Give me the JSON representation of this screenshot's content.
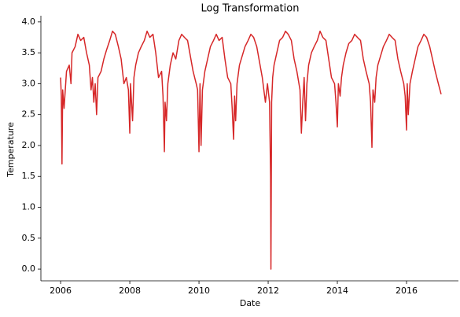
{
  "chart_data": {
    "type": "line",
    "title": "Log Transformation",
    "x_label": "Date",
    "y_label": "Temperature",
    "color": "#d62728",
    "xlim": [
      2005.43,
      2017.5
    ],
    "xticks": [
      2006,
      2008,
      2010,
      2012,
      2014,
      2016
    ],
    "ylim": [
      -0.19,
      4.1
    ],
    "yticks": [
      {
        "value": 0,
        "label": "0.0"
      },
      0.5,
      {
        "value": 1,
        "label": "1.0"
      },
      1.5,
      {
        "value": 2,
        "label": "2.0"
      },
      2.5,
      {
        "value": 3,
        "label": "3.0"
      },
      3.5,
      {
        "value": 4,
        "label": "4.0"
      }
    ],
    "x": [
      2006.0,
      2006.02,
      2006.04,
      2006.06,
      2006.1,
      2006.17,
      2006.25,
      2006.3,
      2006.33,
      2006.42,
      2006.5,
      2006.58,
      2006.67,
      2006.75,
      2006.83,
      2006.88,
      2006.92,
      2006.96,
      2007.0,
      2007.04,
      2007.08,
      2007.17,
      2007.25,
      2007.33,
      2007.42,
      2007.5,
      2007.58,
      2007.67,
      2007.75,
      2007.83,
      2007.9,
      2007.96,
      2008.0,
      2008.02,
      2008.08,
      2008.12,
      2008.17,
      2008.25,
      2008.33,
      2008.42,
      2008.5,
      2008.58,
      2008.67,
      2008.75,
      2008.83,
      2008.92,
      2008.96,
      2009.0,
      2009.02,
      2009.06,
      2009.1,
      2009.17,
      2009.25,
      2009.33,
      2009.42,
      2009.5,
      2009.58,
      2009.67,
      2009.75,
      2009.83,
      2009.92,
      2009.96,
      2010.0,
      2010.03,
      2010.06,
      2010.1,
      2010.17,
      2010.25,
      2010.33,
      2010.42,
      2010.5,
      2010.58,
      2010.67,
      2010.75,
      2010.83,
      2010.92,
      2010.96,
      2011.0,
      2011.03,
      2011.06,
      2011.1,
      2011.17,
      2011.25,
      2011.33,
      2011.42,
      2011.5,
      2011.58,
      2011.67,
      2011.75,
      2011.83,
      2011.92,
      2011.98,
      2012.04,
      2012.07,
      2012.08,
      2012.1,
      2012.13,
      2012.17,
      2012.25,
      2012.33,
      2012.42,
      2012.5,
      2012.58,
      2012.67,
      2012.75,
      2012.83,
      2012.92,
      2012.96,
      2013.0,
      2013.04,
      2013.08,
      2013.12,
      2013.17,
      2013.25,
      2013.33,
      2013.42,
      2013.5,
      2013.58,
      2013.67,
      2013.75,
      2013.83,
      2013.92,
      2013.96,
      2014.0,
      2014.03,
      2014.08,
      2014.12,
      2014.17,
      2014.25,
      2014.33,
      2014.42,
      2014.5,
      2014.58,
      2014.67,
      2014.75,
      2014.83,
      2014.92,
      2014.96,
      2015.0,
      2015.03,
      2015.08,
      2015.12,
      2015.17,
      2015.25,
      2015.33,
      2015.42,
      2015.5,
      2015.58,
      2015.67,
      2015.75,
      2015.83,
      2015.92,
      2015.96,
      2016.0,
      2016.02,
      2016.05,
      2016.1,
      2016.17,
      2016.25,
      2016.33,
      2016.42,
      2016.5,
      2016.58,
      2016.67,
      2016.75,
      2016.83,
      2016.92,
      2017.0
    ],
    "values": [
      3.1,
      2.8,
      1.7,
      2.9,
      2.6,
      3.2,
      3.3,
      3.0,
      3.5,
      3.6,
      3.8,
      3.7,
      3.75,
      3.5,
      3.3,
      2.9,
      3.1,
      2.7,
      3.0,
      2.5,
      3.1,
      3.2,
      3.4,
      3.55,
      3.7,
      3.85,
      3.8,
      3.6,
      3.4,
      3.0,
      3.1,
      2.9,
      2.2,
      3.0,
      2.4,
      3.1,
      3.3,
      3.5,
      3.6,
      3.7,
      3.85,
      3.75,
      3.8,
      3.5,
      3.1,
      3.2,
      2.8,
      1.9,
      2.7,
      2.4,
      3.0,
      3.3,
      3.5,
      3.4,
      3.7,
      3.8,
      3.75,
      3.7,
      3.45,
      3.2,
      3.0,
      2.9,
      1.9,
      3.0,
      2.0,
      2.9,
      3.2,
      3.4,
      3.6,
      3.7,
      3.8,
      3.7,
      3.75,
      3.4,
      3.1,
      3.0,
      2.6,
      2.1,
      2.8,
      2.4,
      3.0,
      3.3,
      3.45,
      3.6,
      3.7,
      3.8,
      3.75,
      3.6,
      3.35,
      3.1,
      2.7,
      3.0,
      2.7,
      1.5,
      0.0,
      2.7,
      3.1,
      3.3,
      3.5,
      3.7,
      3.75,
      3.85,
      3.8,
      3.7,
      3.4,
      3.2,
      2.9,
      2.2,
      2.7,
      3.1,
      2.4,
      3.0,
      3.3,
      3.5,
      3.6,
      3.7,
      3.85,
      3.75,
      3.7,
      3.4,
      3.1,
      3.0,
      2.7,
      2.3,
      3.0,
      2.8,
      3.1,
      3.3,
      3.5,
      3.65,
      3.7,
      3.8,
      3.75,
      3.7,
      3.4,
      3.2,
      3.0,
      2.7,
      1.97,
      2.9,
      2.7,
      3.1,
      3.3,
      3.45,
      3.6,
      3.7,
      3.8,
      3.75,
      3.7,
      3.4,
      3.2,
      3.0,
      2.8,
      2.25,
      3.0,
      2.5,
      3.0,
      3.2,
      3.4,
      3.6,
      3.7,
      3.8,
      3.75,
      3.6,
      3.4,
      3.2,
      3.0,
      2.83
    ]
  }
}
